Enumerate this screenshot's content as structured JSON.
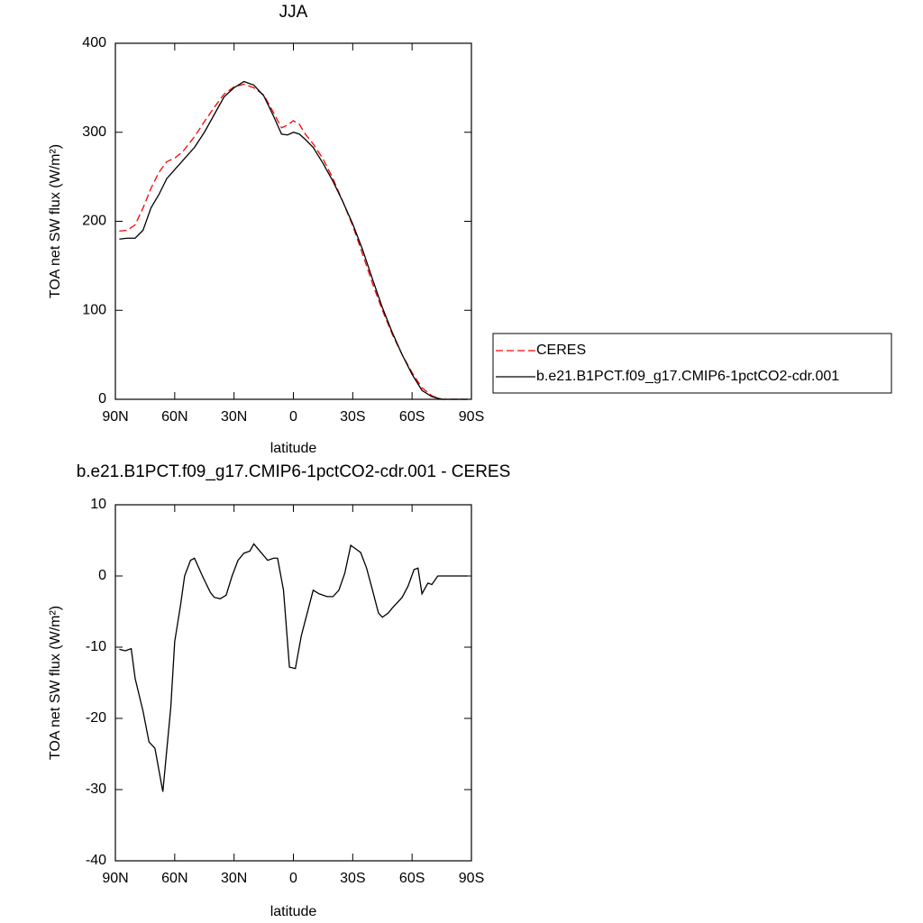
{
  "chart_data": [
    {
      "type": "line",
      "title": "JJA",
      "xlabel": "latitude",
      "ylabel": "TOA net SW flux (W/m²)",
      "x": [
        88,
        84,
        80,
        76,
        72,
        68,
        64,
        60,
        56,
        50,
        45,
        40,
        35,
        30,
        25,
        20,
        15,
        10,
        6,
        3,
        0,
        -3,
        -6,
        -10,
        -15,
        -20,
        -25,
        -30,
        -35,
        -40,
        -45,
        -50,
        -55,
        -60,
        -65,
        -70,
        -75,
        -80,
        -85,
        -88
      ],
      "series": [
        {
          "name": "CERES",
          "color": "#ff0000",
          "linestyle": "dashed",
          "values": [
            189,
            190,
            196,
            215,
            237,
            255,
            267,
            271,
            278,
            295,
            312,
            328,
            343,
            351,
            354,
            350,
            342,
            322,
            305,
            308,
            313,
            309,
            298,
            287,
            270,
            248,
            222,
            195,
            163,
            130,
            100,
            73,
            50,
            30,
            13,
            4,
            0,
            0,
            0,
            0
          ]
        },
        {
          "name": "b.e21.B1PCT.f09_g17.CMIP6-1pctCO2-cdr.001",
          "color": "#000000",
          "linestyle": "solid",
          "values": [
            180,
            181,
            181,
            190,
            215,
            230,
            248,
            258,
            268,
            283,
            300,
            320,
            340,
            350,
            357,
            353,
            341,
            318,
            298,
            297,
            300,
            298,
            292,
            283,
            265,
            245,
            222,
            197,
            168,
            135,
            103,
            75,
            50,
            28,
            10,
            3,
            0,
            0,
            0,
            0
          ]
        }
      ],
      "xlim": [
        90,
        -90
      ],
      "xticks": [
        {
          "value": 90,
          "label": "90N"
        },
        {
          "value": 60,
          "label": "60N"
        },
        {
          "value": 30,
          "label": "30N"
        },
        {
          "value": 0,
          "label": "0"
        },
        {
          "value": -30,
          "label": "30S"
        },
        {
          "value": -60,
          "label": "60S"
        },
        {
          "value": -90,
          "label": "90S"
        }
      ],
      "ylim": [
        0,
        400
      ],
      "yticks": [
        0,
        100,
        200,
        300,
        400
      ],
      "legend": "right"
    },
    {
      "type": "line",
      "title": "b.e21.B1PCT.f09_g17.CMIP6-1pctCO2-cdr.001 - CERES",
      "xlabel": "latitude",
      "ylabel": "TOA net SW flux (W/m²)",
      "x": [
        88,
        85,
        82,
        80,
        76,
        73,
        70,
        66,
        62,
        60,
        57,
        55,
        52,
        50,
        46,
        42,
        40,
        37,
        34,
        31,
        28,
        25,
        22,
        20,
        17,
        13,
        10,
        8,
        5,
        2,
        -1,
        -4,
        -7,
        -10,
        -13,
        -17,
        -20,
        -23,
        -26,
        -29,
        -32,
        -34,
        -37,
        -40,
        -43,
        -45,
        -48,
        -50,
        -55,
        -58,
        -61,
        -63,
        -65,
        -68,
        -70,
        -73,
        -77,
        -80,
        -85,
        -88
      ],
      "series": [
        {
          "color": "#000000",
          "linestyle": "solid",
          "values": [
            -10.3,
            -10.5,
            -10.2,
            -14.4,
            -19,
            -23.3,
            -24.2,
            -30.3,
            -18.5,
            -9.2,
            -4,
            0,
            2.2,
            2.5,
            0,
            -2.3,
            -3,
            -3.2,
            -2.7,
            0,
            2.2,
            3.2,
            3.5,
            4.5,
            3.5,
            2.2,
            2.5,
            2.5,
            -2,
            -12.8,
            -13,
            -8.4,
            -5.2,
            -2,
            -2.5,
            -2.9,
            -2.9,
            -2,
            0.4,
            4.3,
            3.7,
            3.3,
            1.1,
            -2,
            -5.2,
            -5.8,
            -5.2,
            -4.5,
            -3,
            -1.4,
            0.9,
            1.1,
            -2.5,
            -1,
            -1.2,
            0,
            0,
            0,
            0,
            0
          ]
        }
      ],
      "xlim": [
        90,
        -90
      ],
      "xticks": [
        {
          "value": 90,
          "label": "90N"
        },
        {
          "value": 60,
          "label": "60N"
        },
        {
          "value": 30,
          "label": "30N"
        },
        {
          "value": 0,
          "label": "0"
        },
        {
          "value": -30,
          "label": "30S"
        },
        {
          "value": -60,
          "label": "60S"
        },
        {
          "value": -90,
          "label": "90S"
        }
      ],
      "ylim": [
        -40,
        10
      ],
      "yticks": [
        -40,
        -30,
        -20,
        -10,
        0,
        10
      ]
    }
  ]
}
